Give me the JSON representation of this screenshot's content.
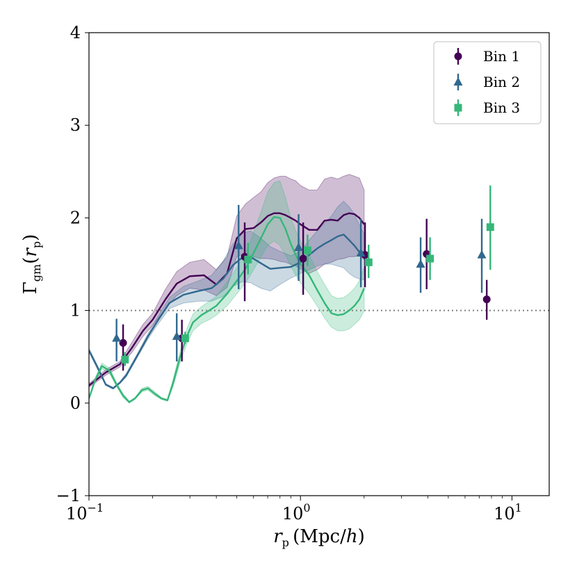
{
  "chart_data": {
    "type": "line",
    "title": "",
    "xlabel": "r_p (Mpc/h)",
    "ylabel": "Γ_gm(r_p)",
    "xscale": "log",
    "xlim": [
      0.1,
      15
    ],
    "ylim": [
      -1,
      4
    ],
    "x_ticks": [
      {
        "value": 0.1,
        "base": "10",
        "exp": "−1"
      },
      {
        "value": 1,
        "base": "10",
        "exp": "0"
      },
      {
        "value": 10,
        "base": "10",
        "exp": "1"
      }
    ],
    "y_ticks": [
      {
        "value": -1,
        "label": "−1"
      },
      {
        "value": 0,
        "label": "0"
      },
      {
        "value": 1,
        "label": "1"
      },
      {
        "value": 2,
        "label": "2"
      },
      {
        "value": 3,
        "label": "3"
      },
      {
        "value": 4,
        "label": "4"
      }
    ],
    "reference_line": {
      "y": 1,
      "style": "dotted",
      "color": "#808080"
    },
    "legend": {
      "position": "top-right"
    },
    "series": [
      {
        "name": "Bin 1",
        "color": "#440154",
        "marker": "circle",
        "points": [
          {
            "x": 0.145,
            "y": 0.65,
            "lo": 0.35,
            "hi": 0.85
          },
          {
            "x": 0.275,
            "y": 0.7,
            "lo": 0.45,
            "hi": 0.9
          },
          {
            "x": 0.545,
            "y": 1.58,
            "lo": 1.1,
            "hi": 1.95
          },
          {
            "x": 1.03,
            "y": 1.56,
            "lo": 1.17,
            "hi": 1.95
          },
          {
            "x": 2.02,
            "y": 1.6,
            "lo": 1.25,
            "hi": 1.95
          },
          {
            "x": 3.95,
            "y": 1.61,
            "lo": 1.23,
            "hi": 1.99
          },
          {
            "x": 7.6,
            "y": 1.12,
            "lo": 0.9,
            "hi": 1.33
          }
        ],
        "model": {
          "x": [
            0.1,
            0.12,
            0.14,
            0.16,
            0.18,
            0.2,
            0.23,
            0.26,
            0.3,
            0.35,
            0.4,
            0.45,
            0.5,
            0.55,
            0.6,
            0.65,
            0.7,
            0.75,
            0.8,
            0.85,
            0.9,
            0.95,
            1.0,
            1.1,
            1.2,
            1.3,
            1.4,
            1.5,
            1.6,
            1.7,
            1.8,
            1.9,
            2.0
          ],
          "y": [
            0.19,
            0.33,
            0.42,
            0.6,
            0.78,
            0.9,
            1.12,
            1.29,
            1.37,
            1.38,
            1.28,
            1.4,
            1.78,
            1.88,
            1.89,
            1.95,
            2.02,
            2.05,
            2.05,
            2.03,
            2.0,
            1.97,
            1.93,
            1.87,
            1.87,
            1.97,
            1.98,
            1.97,
            2.03,
            2.05,
            2.04,
            2.0,
            1.93
          ],
          "lo": [
            0.17,
            0.3,
            0.39,
            0.55,
            0.72,
            0.84,
            1.02,
            1.16,
            1.24,
            1.22,
            1.16,
            1.25,
            1.58,
            1.62,
            1.58,
            1.56,
            1.56,
            1.55,
            1.53,
            1.52,
            1.5,
            1.48,
            1.45,
            1.4,
            1.44,
            1.5,
            1.52,
            1.55,
            1.56,
            1.58,
            1.58,
            1.6,
            1.55
          ],
          "hi": [
            0.21,
            0.36,
            0.45,
            0.66,
            0.85,
            0.97,
            1.23,
            1.42,
            1.52,
            1.55,
            1.44,
            1.58,
            2.02,
            2.15,
            2.22,
            2.28,
            2.38,
            2.43,
            2.45,
            2.45,
            2.42,
            2.4,
            2.35,
            2.3,
            2.3,
            2.42,
            2.44,
            2.42,
            2.45,
            2.47,
            2.45,
            2.43,
            2.3
          ]
        }
      },
      {
        "name": "Bin 2",
        "color": "#31688e",
        "marker": "triangle",
        "points": [
          {
            "x": 0.135,
            "y": 0.7,
            "lo": 0.45,
            "hi": 0.91
          },
          {
            "x": 0.26,
            "y": 0.72,
            "lo": 0.45,
            "hi": 0.97
          },
          {
            "x": 0.51,
            "y": 1.7,
            "lo": 1.23,
            "hi": 2.14
          },
          {
            "x": 0.98,
            "y": 1.68,
            "lo": 1.32,
            "hi": 2.04
          },
          {
            "x": 1.93,
            "y": 1.62,
            "lo": 1.25,
            "hi": 1.99
          },
          {
            "x": 3.7,
            "y": 1.5,
            "lo": 1.19,
            "hi": 1.79
          },
          {
            "x": 7.2,
            "y": 1.6,
            "lo": 1.19,
            "hi": 1.99
          }
        ],
        "model": {
          "x": [
            0.1,
            0.11,
            0.12,
            0.13,
            0.14,
            0.15,
            0.17,
            0.19,
            0.21,
            0.24,
            0.28,
            0.33,
            0.38,
            0.43,
            0.48,
            0.53,
            0.58,
            0.65,
            0.72,
            0.8,
            0.9,
            1.0,
            1.1,
            1.2,
            1.3,
            1.4,
            1.5,
            1.6,
            1.7,
            1.8,
            1.9,
            2.0
          ],
          "y": [
            0.57,
            0.38,
            0.2,
            0.16,
            0.22,
            0.3,
            0.52,
            0.72,
            0.88,
            1.08,
            1.17,
            1.21,
            1.24,
            1.34,
            1.49,
            1.57,
            1.58,
            1.51,
            1.45,
            1.46,
            1.47,
            1.52,
            1.6,
            1.67,
            1.72,
            1.76,
            1.8,
            1.82,
            1.76,
            1.7,
            1.63,
            1.58
          ],
          "lo": [
            0.55,
            0.36,
            0.19,
            0.15,
            0.21,
            0.28,
            0.5,
            0.69,
            0.84,
            1.02,
            1.08,
            1.1,
            1.1,
            1.15,
            1.26,
            1.31,
            1.3,
            1.24,
            1.21,
            1.28,
            1.35,
            1.4,
            1.44,
            1.48,
            1.5,
            1.5,
            1.48,
            1.46,
            1.4,
            1.36,
            1.34,
            1.33
          ],
          "hi": [
            0.59,
            0.4,
            0.21,
            0.17,
            0.23,
            0.32,
            0.54,
            0.75,
            0.92,
            1.14,
            1.26,
            1.32,
            1.38,
            1.53,
            1.72,
            1.83,
            1.86,
            1.78,
            1.69,
            1.64,
            1.59,
            1.64,
            1.76,
            1.86,
            1.94,
            2.02,
            2.12,
            2.18,
            2.12,
            2.04,
            1.92,
            1.83
          ]
        }
      },
      {
        "name": "Bin 3",
        "color": "#35b779",
        "marker": "square",
        "points": [
          {
            "x": 0.148,
            "y": 0.47,
            "lo": 0.4,
            "hi": 0.55
          },
          {
            "x": 0.285,
            "y": 0.7,
            "lo": 0.64,
            "hi": 0.77
          },
          {
            "x": 0.565,
            "y": 1.55,
            "lo": 1.39,
            "hi": 1.73
          },
          {
            "x": 1.08,
            "y": 1.65,
            "lo": 1.48,
            "hi": 1.82
          },
          {
            "x": 2.1,
            "y": 1.52,
            "lo": 1.35,
            "hi": 1.71
          },
          {
            "x": 4.1,
            "y": 1.56,
            "lo": 1.33,
            "hi": 1.79
          },
          {
            "x": 7.9,
            "y": 1.9,
            "lo": 1.44,
            "hi": 2.35
          }
        ],
        "model": {
          "x": [
            0.1,
            0.107,
            0.115,
            0.125,
            0.135,
            0.145,
            0.155,
            0.165,
            0.178,
            0.19,
            0.205,
            0.22,
            0.235,
            0.25,
            0.27,
            0.29,
            0.31,
            0.34,
            0.37,
            0.4,
            0.45,
            0.5,
            0.55,
            0.6,
            0.65,
            0.7,
            0.75,
            0.8,
            0.85,
            0.9,
            0.95,
            1.0,
            1.1,
            1.2,
            1.3,
            1.4,
            1.5,
            1.6,
            1.7,
            1.8,
            1.9,
            2.0
          ],
          "y": [
            0.05,
            0.25,
            0.4,
            0.35,
            0.2,
            0.08,
            0.01,
            0.05,
            0.14,
            0.16,
            0.1,
            0.05,
            0.03,
            0.22,
            0.5,
            0.72,
            0.87,
            0.95,
            1.0,
            1.05,
            1.18,
            1.32,
            1.45,
            1.62,
            1.78,
            1.93,
            2.01,
            2.0,
            1.88,
            1.72,
            1.6,
            1.5,
            1.38,
            1.22,
            1.08,
            0.97,
            0.95,
            0.96,
            1.0,
            1.05,
            1.12,
            1.24
          ],
          "lo": [
            0.04,
            0.23,
            0.37,
            0.32,
            0.18,
            0.06,
            0.0,
            0.04,
            0.12,
            0.14,
            0.08,
            0.04,
            0.02,
            0.18,
            0.44,
            0.64,
            0.78,
            0.86,
            0.9,
            0.95,
            1.05,
            1.18,
            1.3,
            1.44,
            1.58,
            1.7,
            1.75,
            1.7,
            1.6,
            1.48,
            1.38,
            1.3,
            1.18,
            1.05,
            0.92,
            0.82,
            0.78,
            0.78,
            0.8,
            0.85,
            0.9,
            1.0
          ],
          "hi": [
            0.06,
            0.27,
            0.43,
            0.38,
            0.22,
            0.1,
            0.02,
            0.06,
            0.16,
            0.18,
            0.12,
            0.06,
            0.04,
            0.26,
            0.56,
            0.8,
            0.96,
            1.04,
            1.1,
            1.15,
            1.31,
            1.46,
            1.62,
            1.84,
            2.06,
            2.28,
            2.38,
            2.4,
            2.22,
            2.0,
            1.86,
            1.75,
            1.6,
            1.42,
            1.28,
            1.16,
            1.13,
            1.14,
            1.18,
            1.24,
            1.32,
            1.47
          ]
        }
      }
    ]
  }
}
